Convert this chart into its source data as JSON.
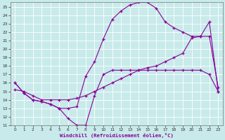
{
  "xlabel": "Windchill (Refroidissement éolien,°C)",
  "xlim": [
    -0.5,
    23.5
  ],
  "ylim": [
    11,
    25.5
  ],
  "xticks": [
    0,
    1,
    2,
    3,
    4,
    5,
    6,
    7,
    8,
    9,
    10,
    11,
    12,
    13,
    14,
    15,
    16,
    17,
    18,
    19,
    20,
    21,
    22,
    23
  ],
  "yticks": [
    11,
    12,
    13,
    14,
    15,
    16,
    17,
    18,
    19,
    20,
    21,
    22,
    23,
    24,
    25
  ],
  "bg_color": "#c8eaea",
  "line_color": "#880099",
  "line1_x": [
    0,
    1,
    2,
    3,
    4,
    5,
    6,
    7,
    8,
    9,
    10,
    11,
    12,
    13,
    14,
    15,
    16,
    17,
    18,
    19,
    20,
    21,
    22,
    23
  ],
  "line1_y": [
    16.0,
    14.8,
    14.0,
    13.8,
    13.5,
    13.0,
    11.8,
    11.0,
    11.0,
    14.5,
    17.0,
    17.5,
    17.5,
    17.5,
    17.5,
    17.5,
    17.5,
    17.5,
    17.5,
    17.5,
    17.5,
    17.5,
    17.0,
    15.0
  ],
  "line2_x": [
    0,
    1,
    2,
    3,
    4,
    5,
    6,
    7,
    8,
    9,
    10,
    11,
    12,
    13,
    14,
    15,
    16,
    17,
    18,
    19,
    20,
    21,
    22,
    23
  ],
  "line2_y": [
    16.0,
    14.8,
    14.0,
    13.8,
    13.5,
    13.0,
    13.0,
    13.2,
    16.8,
    18.5,
    21.2,
    23.5,
    24.5,
    25.2,
    25.5,
    25.5,
    24.8,
    23.2,
    22.5,
    22.0,
    21.5,
    21.5,
    23.2,
    15.0
  ],
  "line3_x": [
    0,
    1,
    2,
    3,
    4,
    5,
    6,
    7,
    8,
    9,
    10,
    11,
    12,
    13,
    14,
    15,
    16,
    17,
    18,
    19,
    20,
    21,
    22,
    23
  ],
  "line3_y": [
    15.2,
    15.0,
    14.5,
    14.0,
    14.0,
    14.0,
    14.0,
    14.2,
    14.5,
    15.0,
    15.5,
    16.0,
    16.5,
    17.0,
    17.5,
    17.8,
    18.0,
    18.5,
    19.0,
    19.5,
    21.3,
    21.5,
    21.5,
    15.5
  ]
}
